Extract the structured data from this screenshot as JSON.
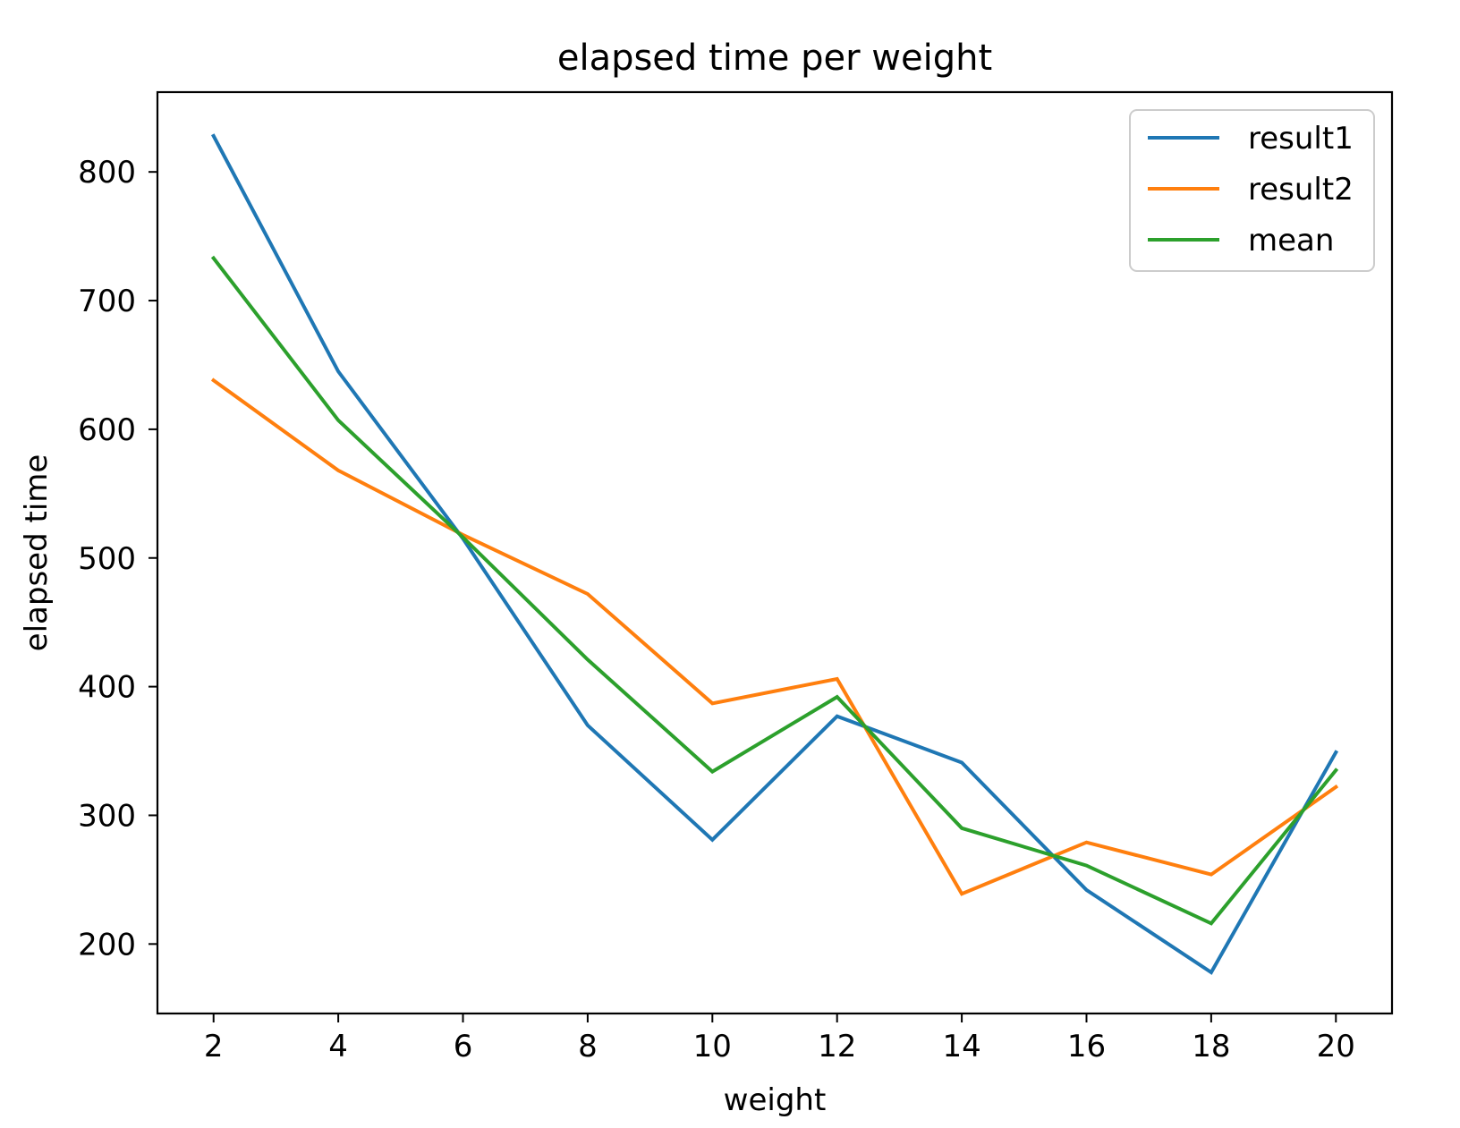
{
  "chart_data": {
    "type": "line",
    "title": "elapsed time per weight",
    "xlabel": "weight",
    "ylabel": "elapsed time",
    "x": [
      2,
      4,
      6,
      8,
      10,
      12,
      14,
      16,
      18,
      20
    ],
    "xlim": [
      1.1,
      20.9
    ],
    "ylim": [
      146,
      862
    ],
    "xticks": [
      2,
      4,
      6,
      8,
      10,
      12,
      14,
      16,
      18,
      20
    ],
    "yticks": [
      200,
      300,
      400,
      500,
      600,
      700,
      800
    ],
    "grid": false,
    "legend_position": "top-right",
    "series": [
      {
        "name": "result1",
        "color": "#1f77b4",
        "values": [
          828,
          645,
          515,
          370,
          281,
          377,
          341,
          242,
          178,
          349
        ]
      },
      {
        "name": "result2",
        "color": "#ff7f0e",
        "values": [
          638,
          568,
          518,
          472,
          387,
          406,
          239,
          279,
          254,
          322
        ]
      },
      {
        "name": "mean",
        "color": "#2ca02c",
        "values": [
          733,
          607,
          516,
          421,
          334,
          392,
          290,
          261,
          216,
          335
        ]
      }
    ]
  }
}
